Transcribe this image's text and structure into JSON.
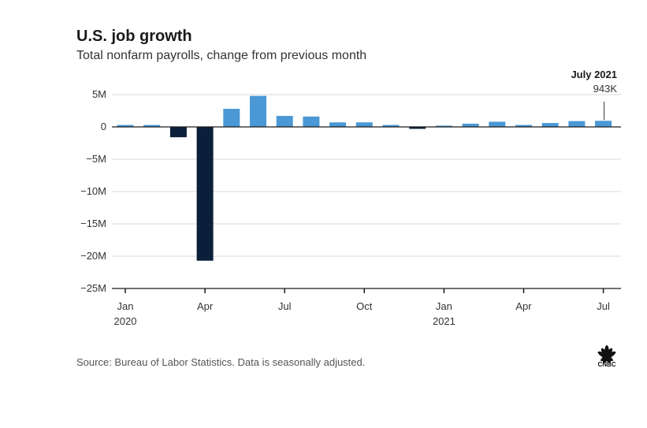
{
  "chart_data": {
    "type": "bar",
    "title": "U.S. job growth",
    "subtitle": "Total nonfarm payrolls, change from previous month",
    "ylabel": "",
    "xlabel": "",
    "ylim": [
      -25,
      5
    ],
    "y_ticks": [
      5,
      0,
      -5,
      -10,
      -15,
      -20,
      -25
    ],
    "y_tick_labels": [
      "5M",
      "0",
      "−5M",
      "−10M",
      "−15M",
      "−20M",
      "−25M"
    ],
    "categories": [
      "Jan 2020",
      "Feb 2020",
      "Mar 2020",
      "Apr 2020",
      "May 2020",
      "Jun 2020",
      "Jul 2020",
      "Aug 2020",
      "Sep 2020",
      "Oct 2020",
      "Nov 2020",
      "Dec 2020",
      "Jan 2021",
      "Feb 2021",
      "Mar 2021",
      "Apr 2021",
      "May 2021",
      "Jun 2021",
      "Jul 2021"
    ],
    "values": [
      0.3,
      0.3,
      -1.6,
      -20.7,
      2.8,
      4.8,
      1.7,
      1.6,
      0.7,
      0.7,
      0.3,
      -0.3,
      0.2,
      0.5,
      0.8,
      0.3,
      0.6,
      0.9,
      0.943
    ],
    "x_tick_labels": [
      {
        "index": 0,
        "label": "Jan",
        "year": "2020"
      },
      {
        "index": 3,
        "label": "Apr",
        "year": ""
      },
      {
        "index": 6,
        "label": "Jul",
        "year": ""
      },
      {
        "index": 9,
        "label": "Oct",
        "year": ""
      },
      {
        "index": 12,
        "label": "Jan",
        "year": "2021"
      },
      {
        "index": 15,
        "label": "Apr",
        "year": ""
      },
      {
        "index": 18,
        "label": "Jul",
        "year": ""
      }
    ],
    "annotation": {
      "index": 18,
      "label": "July 2021",
      "value_label": "943K"
    },
    "positive_color": "#4a98d6",
    "negative_color": "#0c1f3a",
    "grid": true
  },
  "source": "Source: Bureau of Labor Statistics. Data is seasonally adjusted.",
  "logo": {
    "text": "CNBC",
    "colors": [
      "#111111"
    ]
  }
}
